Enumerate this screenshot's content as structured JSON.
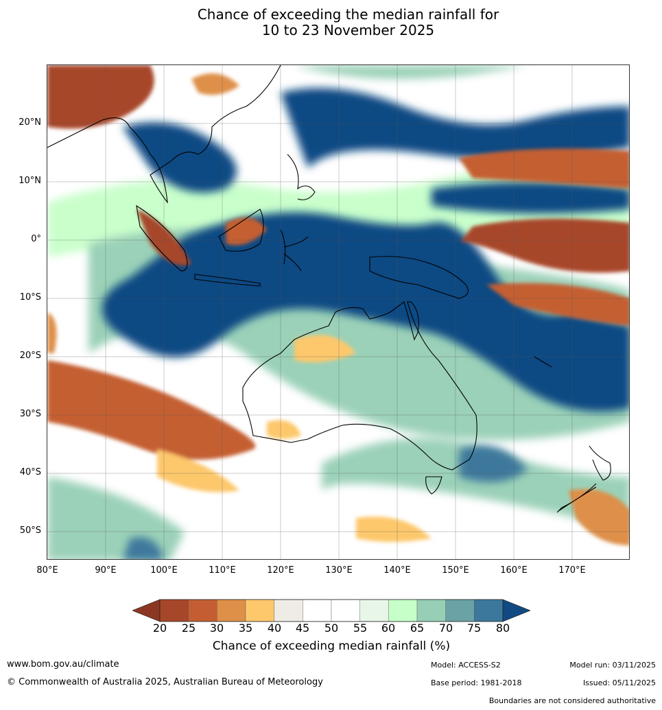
{
  "title": {
    "line1": "Chance of exceeding the median rainfall for",
    "line2": "10 to 23 November 2025"
  },
  "axes": {
    "lat_labels": [
      "20°N",
      "10°N",
      "0°",
      "10°S",
      "20°S",
      "30°S",
      "40°S",
      "50°S"
    ],
    "lon_labels": [
      "80°E",
      "90°E",
      "100°E",
      "110°E",
      "120°E",
      "130°E",
      "140°E",
      "150°E",
      "160°E",
      "170°E"
    ]
  },
  "colorbar": {
    "ticks": [
      "20",
      "25",
      "30",
      "35",
      "40",
      "45",
      "50",
      "55",
      "60",
      "65",
      "70",
      "75",
      "80"
    ],
    "colors": [
      "#a7472a",
      "#c45e32",
      "#de8f48",
      "#fdc86c",
      "#efece6",
      "#ffffff",
      "#ffffff",
      "#e8f6e8",
      "#c7ffc9",
      "#96cfb5",
      "#6aa2a6",
      "#3c789c"
    ],
    "low_color": "#8c3722",
    "high_color": "#114a83",
    "label": "Chance of exceeding median rainfall (%)"
  },
  "footer": {
    "website": "www.bom.gov.au/climate",
    "copyright": "© Commonwealth of Australia 2025, Australian Bureau of Meteorology",
    "model": "Model: ACCESS-S2",
    "base_period": "Base period: 1981-2018",
    "model_run": "Model run: 03/11/2025",
    "issued": "Issued: 05/11/2025",
    "disclaimer": "Boundaries are not considered authoritative"
  }
}
